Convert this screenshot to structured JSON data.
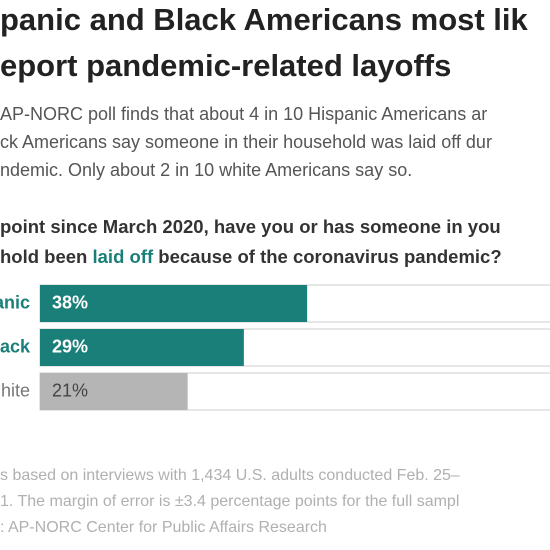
{
  "chart_data": {
    "type": "hbar",
    "title_lines": [
      "panic and Black Americans most lik",
      "eport pandemic-related layoffs"
    ],
    "subtitle_lines": [
      "AP-NORC poll finds that about 4 in 10 Hispanic Americans ar",
      "ck Americans say someone in their household was laid off dur",
      "ndemic. Only about 2 in 10 white Americans say so."
    ],
    "question_lines": [
      [
        "point since March 2020, have you or has someone in you"
      ],
      [
        "hold been ",
        "laid off",
        " because of the coronavirus pandemic?"
      ]
    ],
    "categories": [
      "anic",
      "ack",
      "hite"
    ],
    "values": [
      38,
      29,
      21
    ],
    "value_labels": [
      "38%",
      "29%",
      "21%"
    ],
    "colors": [
      "#1a7f78",
      "#1a7f78",
      "#b5b5b5"
    ],
    "xlim": [
      0,
      100
    ],
    "note_lines": [
      "s based on interviews with 1,434 U.S. adults conducted Feb. 25–",
      "1. The margin of error is ±3.4 percentage points for the full sampl",
      ": AP-NORC Center for Public Affairs Research"
    ]
  }
}
